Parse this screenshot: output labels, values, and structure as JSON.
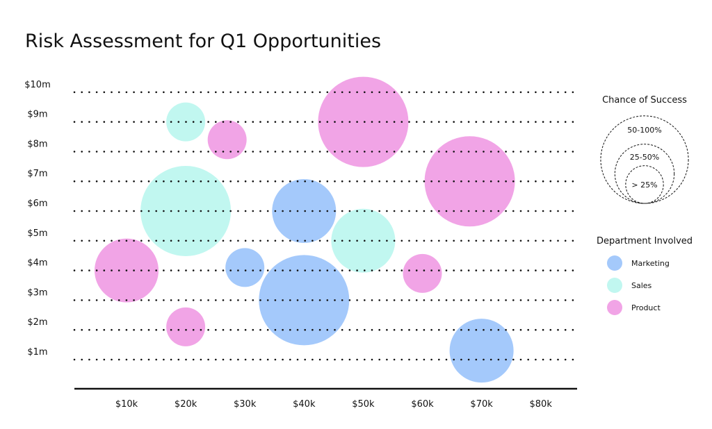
{
  "chart_data": {
    "type": "bubble",
    "title": "Risk Assessment for Q1 Opportunities",
    "xlabel": "",
    "ylabel": "",
    "x_ticks": [
      "$10k",
      "$20k",
      "$30k",
      "$40k",
      "$50k",
      "$60k",
      "$70k",
      "$80k"
    ],
    "y_ticks": [
      "$1m",
      "$2m",
      "$3m",
      "$4m",
      "$5m",
      "$6m",
      "$7m",
      "$8m",
      "$9m",
      "$10m"
    ],
    "xlim": [
      0,
      85
    ],
    "ylim": [
      0.3,
      10
    ],
    "x_unit": "k",
    "y_unit": "m",
    "grid": "horizontal dotted",
    "size_legend": {
      "title": "Chance of Success",
      "levels": [
        {
          "key": "high",
          "label": "50-100%"
        },
        {
          "key": "mid",
          "label": "25-50%"
        },
        {
          "key": "low",
          "label": "> 25%"
        }
      ]
    },
    "color_legend": {
      "title": "Department Involved",
      "placement": "right",
      "items": [
        {
          "key": "marketing",
          "label": "Marketing",
          "color": "#a4c9fb"
        },
        {
          "key": "sales",
          "label": "Sales",
          "color": "#c1f7f0"
        },
        {
          "key": "product",
          "label": "Product",
          "color": "#f1a4e6"
        }
      ]
    },
    "points": [
      {
        "x": 20,
        "y": 9.0,
        "dept": "sales",
        "chance": "low"
      },
      {
        "x": 27,
        "y": 8.4,
        "dept": "product",
        "chance": "low"
      },
      {
        "x": 50,
        "y": 9.0,
        "dept": "product",
        "chance": "high"
      },
      {
        "x": 20,
        "y": 6.0,
        "dept": "sales",
        "chance": "high"
      },
      {
        "x": 40,
        "y": 6.0,
        "dept": "marketing",
        "chance": "mid"
      },
      {
        "x": 68,
        "y": 7.0,
        "dept": "product",
        "chance": "high"
      },
      {
        "x": 50,
        "y": 5.0,
        "dept": "sales",
        "chance": "mid"
      },
      {
        "x": 10,
        "y": 4.0,
        "dept": "product",
        "chance": "mid"
      },
      {
        "x": 30,
        "y": 4.1,
        "dept": "marketing",
        "chance": "low"
      },
      {
        "x": 40,
        "y": 3.0,
        "dept": "marketing",
        "chance": "high"
      },
      {
        "x": 60,
        "y": 3.9,
        "dept": "product",
        "chance": "low"
      },
      {
        "x": 20,
        "y": 2.1,
        "dept": "product",
        "chance": "low"
      },
      {
        "x": 70,
        "y": 1.3,
        "dept": "marketing",
        "chance": "mid"
      }
    ]
  }
}
